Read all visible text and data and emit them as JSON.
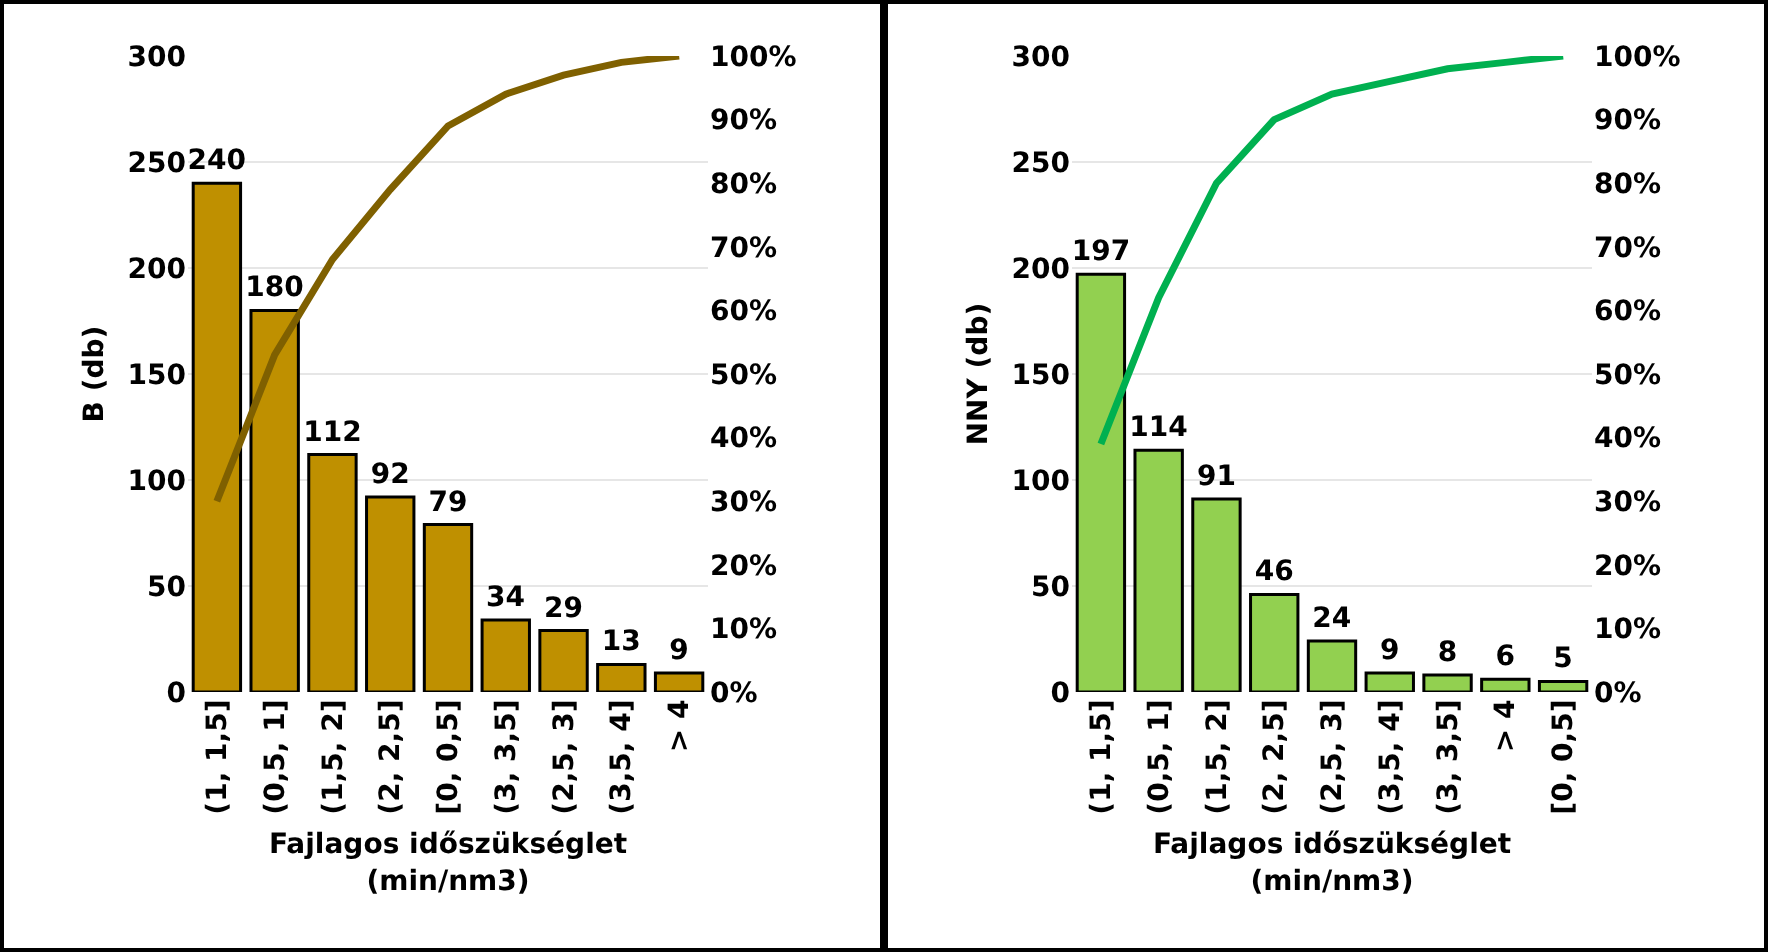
{
  "chart_data": [
    {
      "type": "bar",
      "xlabel": "Fajlagos időszükséglet\n(min/nm3)",
      "ylabel": "B (db)",
      "categories": [
        "(1, 1,5]",
        "(0,5, 1]",
        "(1,5, 2]",
        "(2, 2,5]",
        "[0, 0,5]",
        "(3, 3,5]",
        "(2,5, 3]",
        "(3,5, 4]",
        "> 4"
      ],
      "series": [
        {
          "color": "#bf9000",
          "values": [
            240,
            180,
            112,
            92,
            79,
            34,
            29,
            13,
            9
          ],
          "data_labels": true
        },
        {
          "type": "line",
          "axis": "y2",
          "color": "#7f6000",
          "values": [
            30,
            53,
            68,
            79,
            89,
            94,
            97,
            99,
            100
          ]
        }
      ],
      "ylim": [
        0,
        300
      ],
      "yticks": [
        0,
        50,
        100,
        150,
        200,
        250,
        300
      ],
      "y2lim": [
        0,
        100
      ],
      "y2ticks": [
        {
          "value": 0,
          "label": "0%"
        },
        {
          "value": 10,
          "label": "10%"
        },
        {
          "value": 20,
          "label": "20%"
        },
        {
          "value": 30,
          "label": "30%"
        },
        {
          "value": 40,
          "label": "40%"
        },
        {
          "value": 50,
          "label": "50%"
        },
        {
          "value": 60,
          "label": "60%"
        },
        {
          "value": 70,
          "label": "70%"
        },
        {
          "value": 80,
          "label": "80%"
        },
        {
          "value": 90,
          "label": "90%"
        },
        {
          "value": 100,
          "label": "100%"
        }
      ],
      "grid": "y",
      "legend": false,
      "marker": "none",
      "line_style": "solid"
    },
    {
      "type": "bar",
      "xlabel": "Fajlagos időszükséglet\n(min/nm3)",
      "ylabel": "NNY (db)",
      "categories": [
        "(1, 1,5]",
        "(0,5, 1]",
        "(1,5, 2]",
        "(2, 2,5]",
        "(2,5, 3]",
        "(3,5, 4]",
        "(3, 3,5]",
        "> 4",
        "[0, 0,5]"
      ],
      "series": [
        {
          "color": "#92d050",
          "values": [
            197,
            114,
            91,
            46,
            24,
            9,
            8,
            6,
            5
          ],
          "data_labels": true
        },
        {
          "type": "line",
          "axis": "y2",
          "color": "#00b050",
          "values": [
            39,
            62,
            80,
            90,
            94,
            96,
            98,
            99,
            100
          ]
        }
      ],
      "ylim": [
        0,
        300
      ],
      "yticks": [
        0,
        50,
        100,
        150,
        200,
        250,
        300
      ],
      "y2lim": [
        0,
        100
      ],
      "y2ticks": [
        {
          "value": 0,
          "label": "0%"
        },
        {
          "value": 10,
          "label": "10%"
        },
        {
          "value": 20,
          "label": "20%"
        },
        {
          "value": 30,
          "label": "30%"
        },
        {
          "value": 40,
          "label": "40%"
        },
        {
          "value": 50,
          "label": "50%"
        },
        {
          "value": 60,
          "label": "60%"
        },
        {
          "value": 70,
          "label": "70%"
        },
        {
          "value": 80,
          "label": "80%"
        },
        {
          "value": 90,
          "label": "90%"
        },
        {
          "value": 100,
          "label": "100%"
        }
      ],
      "grid": "y",
      "legend": false,
      "marker": "none",
      "line_style": "solid"
    }
  ]
}
